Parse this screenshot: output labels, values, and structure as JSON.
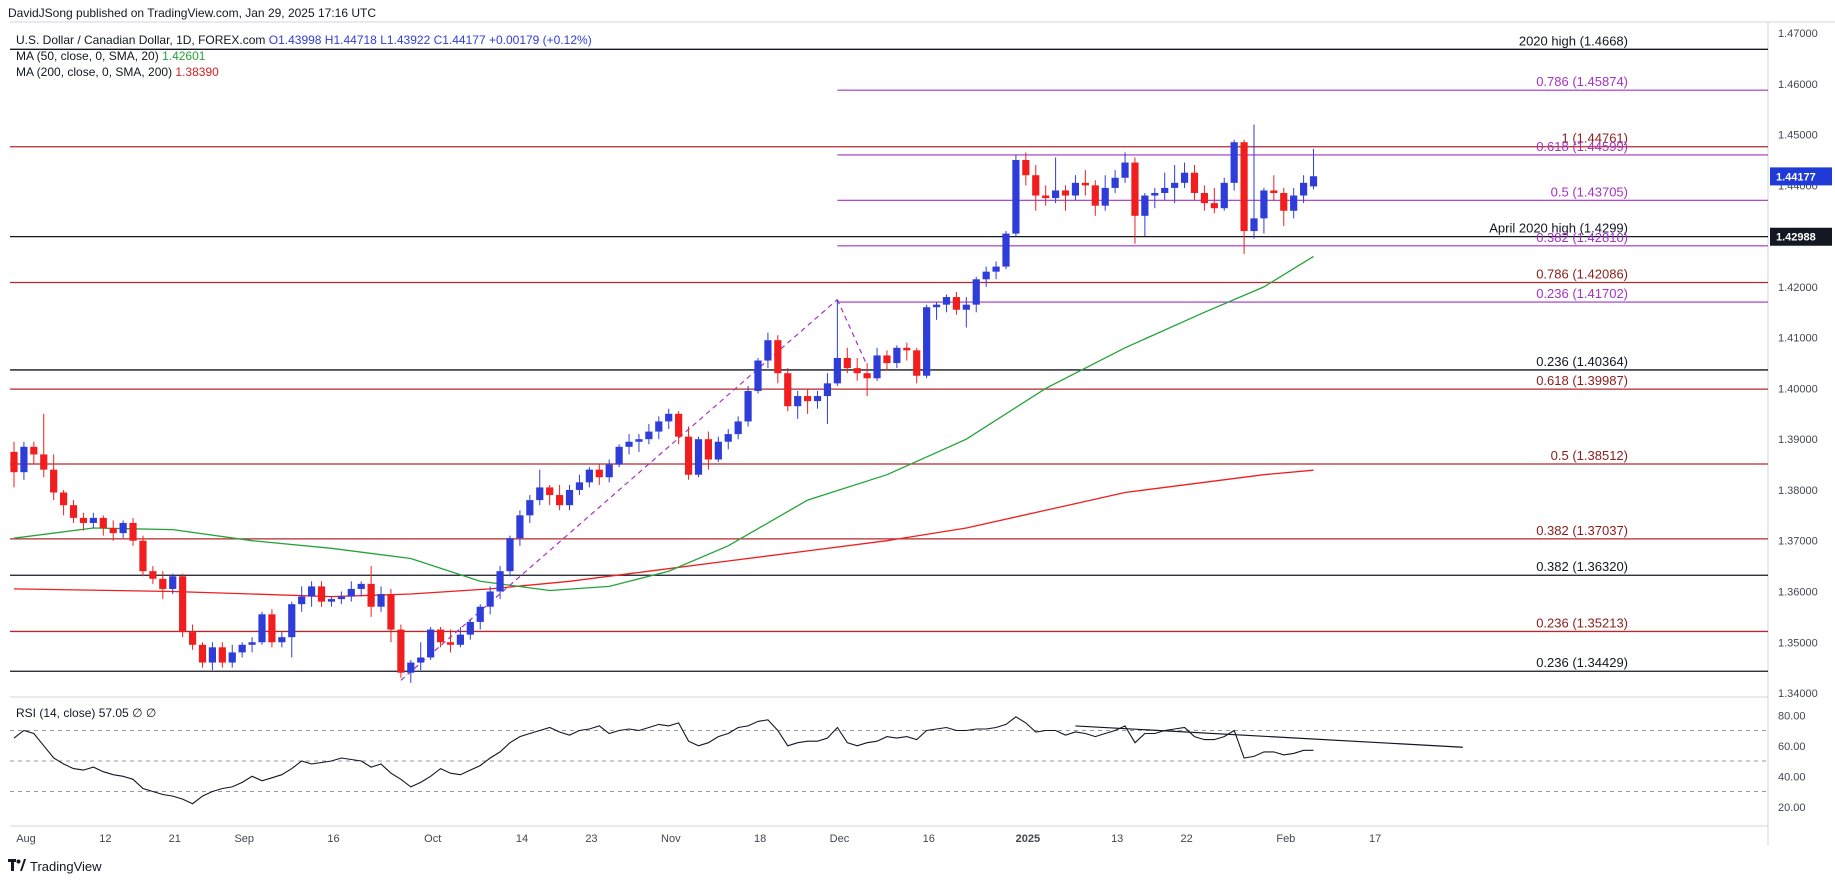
{
  "header": {
    "publisher": "DavidJSong published on TradingView.com, Jan 29, 2025 17:16 UTC"
  },
  "legend": {
    "symbol": "U.S. Dollar / Canadian Dollar, 1D, FOREX.com",
    "ohlc": "O1.43998 H1.44718 L1.43922 C1.44177 +0.00179 (+0.12%)",
    "ma50_label": "MA (50, close, 0, SMA, 20)",
    "ma50_value": "1.42601",
    "ma200_label": "MA (200, close, 0, SMA, 200)",
    "ma200_value": "1.38390",
    "rsi_label": "RSI (14, close)",
    "rsi_value": "57.05",
    "rsi_extra": "∅ ∅"
  },
  "footer": {
    "brand": "TradingView",
    "logo_icon": "tradingview-logo-icon"
  },
  "colors": {
    "up": "#2f3dd8",
    "down": "#f01e1e",
    "ma50": "#24a33a",
    "ma200": "#f01e1e",
    "fib": "#a233c4",
    "level": "#131722",
    "label_price_bg": "#1f3ad6",
    "label_level_bg": "#131722"
  },
  "chart_data": {
    "type": "candlestick",
    "price_axis": {
      "min": 1.34,
      "max": 1.47,
      "ticks": [
        "1.47000",
        "1.46000",
        "1.45000",
        "1.44000",
        "1.43000",
        "1.42000",
        "1.41000",
        "1.40000",
        "1.39000",
        "1.38000",
        "1.37000",
        "1.36000",
        "1.35000",
        "1.34000"
      ]
    },
    "time_axis": [
      "Aug",
      "12",
      "21",
      "Sep",
      "16",
      "Oct",
      "14",
      "23",
      "Nov",
      "18",
      "Dec",
      "16",
      "2025",
      "13",
      "22",
      "Feb",
      "17"
    ],
    "current_price_label": "1.44177",
    "level_price_label": "1.42988",
    "candles": [
      [
        1.3875,
        1.3895,
        1.3805,
        1.3835
      ],
      [
        1.3835,
        1.3895,
        1.382,
        1.3885
      ],
      [
        1.3885,
        1.3895,
        1.385,
        1.387
      ],
      [
        1.387,
        1.395,
        1.3825,
        1.384
      ],
      [
        1.384,
        1.387,
        1.378,
        1.3795
      ],
      [
        1.3795,
        1.38,
        1.375,
        1.377
      ],
      [
        1.377,
        1.378,
        1.3735,
        1.3745
      ],
      [
        1.3745,
        1.3755,
        1.372,
        1.3735
      ],
      [
        1.3735,
        1.3755,
        1.3725,
        1.3745
      ],
      [
        1.3745,
        1.375,
        1.371,
        1.3725
      ],
      [
        1.3725,
        1.374,
        1.37,
        1.3715
      ],
      [
        1.3715,
        1.374,
        1.3705,
        1.3735
      ],
      [
        1.3735,
        1.3745,
        1.369,
        1.37
      ],
      [
        1.37,
        1.371,
        1.363,
        1.364
      ],
      [
        1.364,
        1.365,
        1.3615,
        1.3625
      ],
      [
        1.3625,
        1.364,
        1.3585,
        1.3605
      ],
      [
        1.3605,
        1.3635,
        1.3595,
        1.363
      ],
      [
        1.363,
        1.3635,
        1.351,
        1.352
      ],
      [
        1.352,
        1.3535,
        1.3485,
        1.3495
      ],
      [
        1.3495,
        1.35,
        1.345,
        1.346
      ],
      [
        1.346,
        1.35,
        1.3445,
        1.349
      ],
      [
        1.349,
        1.35,
        1.345,
        1.346
      ],
      [
        1.346,
        1.3495,
        1.345,
        1.348
      ],
      [
        1.348,
        1.35,
        1.347,
        1.3495
      ],
      [
        1.3495,
        1.351,
        1.348,
        1.35
      ],
      [
        1.35,
        1.356,
        1.3495,
        1.3555
      ],
      [
        1.3555,
        1.3565,
        1.349,
        1.35
      ],
      [
        1.35,
        1.352,
        1.349,
        1.351
      ],
      [
        1.351,
        1.358,
        1.347,
        1.3575
      ],
      [
        1.3575,
        1.361,
        1.356,
        1.359
      ],
      [
        1.359,
        1.362,
        1.357,
        1.361
      ],
      [
        1.361,
        1.362,
        1.357,
        1.358
      ],
      [
        1.358,
        1.359,
        1.357,
        1.3585
      ],
      [
        1.3585,
        1.36,
        1.3575,
        1.359
      ],
      [
        1.359,
        1.362,
        1.358,
        1.3605
      ],
      [
        1.3605,
        1.362,
        1.359,
        1.3615
      ],
      [
        1.3615,
        1.365,
        1.355,
        1.357
      ],
      [
        1.357,
        1.361,
        1.356,
        1.3595
      ],
      [
        1.3595,
        1.3605,
        1.35,
        1.3525
      ],
      [
        1.3525,
        1.3535,
        1.343,
        1.344
      ],
      [
        1.344,
        1.3465,
        1.342,
        1.346
      ],
      [
        1.346,
        1.35,
        1.3445,
        1.347
      ],
      [
        1.347,
        1.353,
        1.3465,
        1.3525
      ],
      [
        1.3525,
        1.353,
        1.349,
        1.35
      ],
      [
        1.35,
        1.3525,
        1.348,
        1.3495
      ],
      [
        1.3495,
        1.353,
        1.349,
        1.3515
      ],
      [
        1.3515,
        1.3545,
        1.3505,
        1.354
      ],
      [
        1.354,
        1.3575,
        1.3525,
        1.357
      ],
      [
        1.357,
        1.361,
        1.3555,
        1.36
      ],
      [
        1.36,
        1.365,
        1.3585,
        1.364
      ],
      [
        1.364,
        1.371,
        1.363,
        1.3705
      ],
      [
        1.3705,
        1.376,
        1.369,
        1.375
      ],
      [
        1.375,
        1.379,
        1.3735,
        1.378
      ],
      [
        1.378,
        1.384,
        1.377,
        1.3805
      ],
      [
        1.3805,
        1.381,
        1.377,
        1.379
      ],
      [
        1.379,
        1.381,
        1.376,
        1.377
      ],
      [
        1.377,
        1.381,
        1.376,
        1.38
      ],
      [
        1.38,
        1.383,
        1.379,
        1.3815
      ],
      [
        1.3815,
        1.3845,
        1.3805,
        1.384
      ],
      [
        1.384,
        1.385,
        1.381,
        1.3825
      ],
      [
        1.3825,
        1.386,
        1.3815,
        1.385
      ],
      [
        1.385,
        1.389,
        1.3845,
        1.3885
      ],
      [
        1.3885,
        1.391,
        1.387,
        1.3895
      ],
      [
        1.3895,
        1.391,
        1.3875,
        1.39
      ],
      [
        1.39,
        1.393,
        1.389,
        1.3915
      ],
      [
        1.3915,
        1.3945,
        1.39,
        1.3935
      ],
      [
        1.3935,
        1.396,
        1.392,
        1.395
      ],
      [
        1.395,
        1.3955,
        1.389,
        1.3905
      ],
      [
        1.3905,
        1.3925,
        1.382,
        1.383
      ],
      [
        1.383,
        1.3905,
        1.3825,
        1.39
      ],
      [
        1.39,
        1.3915,
        1.384,
        1.386
      ],
      [
        1.386,
        1.3905,
        1.3855,
        1.3895
      ],
      [
        1.3895,
        1.392,
        1.388,
        1.391
      ],
      [
        1.391,
        1.3945,
        1.39,
        1.3935
      ],
      [
        1.3935,
        1.4005,
        1.3925,
        1.3995
      ],
      [
        1.3995,
        1.406,
        1.399,
        1.4055
      ],
      [
        1.4055,
        1.411,
        1.404,
        1.4095
      ],
      [
        1.4095,
        1.4105,
        1.401,
        1.403
      ],
      [
        1.403,
        1.404,
        1.3955,
        1.3965
      ],
      [
        1.3965,
        1.3995,
        1.394,
        1.3985
      ],
      [
        1.3985,
        1.4,
        1.395,
        1.3975
      ],
      [
        1.3975,
        1.3995,
        1.396,
        1.3985
      ],
      [
        1.3985,
        1.403,
        1.393,
        1.401
      ],
      [
        1.401,
        1.4175,
        1.4005,
        1.406
      ],
      [
        1.406,
        1.408,
        1.403,
        1.404
      ],
      [
        1.404,
        1.406,
        1.4015,
        1.403
      ],
      [
        1.403,
        1.405,
        1.3985,
        1.402
      ],
      [
        1.402,
        1.408,
        1.4015,
        1.4065
      ],
      [
        1.4065,
        1.4075,
        1.4035,
        1.405
      ],
      [
        1.405,
        1.4085,
        1.404,
        1.408
      ],
      [
        1.408,
        1.409,
        1.4055,
        1.4075
      ],
      [
        1.4075,
        1.408,
        1.401,
        1.4025
      ],
      [
        1.4025,
        1.4165,
        1.402,
        1.416
      ],
      [
        1.416,
        1.417,
        1.4135,
        1.4165
      ],
      [
        1.4165,
        1.4185,
        1.415,
        1.418
      ],
      [
        1.418,
        1.419,
        1.4145,
        1.4155
      ],
      [
        1.4155,
        1.418,
        1.412,
        1.4165
      ],
      [
        1.4165,
        1.422,
        1.415,
        1.4215
      ],
      [
        1.4215,
        1.424,
        1.42,
        1.423
      ],
      [
        1.423,
        1.425,
        1.4215,
        1.424
      ],
      [
        1.424,
        1.431,
        1.4235,
        1.4305
      ],
      [
        1.4305,
        1.446,
        1.43,
        1.445
      ],
      [
        1.445,
        1.4465,
        1.44,
        1.442
      ],
      [
        1.442,
        1.444,
        1.435,
        1.438
      ],
      [
        1.438,
        1.44,
        1.436,
        1.4375
      ],
      [
        1.4375,
        1.4455,
        1.4365,
        1.439
      ],
      [
        1.439,
        1.44,
        1.435,
        1.438
      ],
      [
        1.438,
        1.442,
        1.437,
        1.4405
      ],
      [
        1.4405,
        1.443,
        1.438,
        1.44
      ],
      [
        1.44,
        1.441,
        1.434,
        1.436
      ],
      [
        1.436,
        1.442,
        1.435,
        1.4395
      ],
      [
        1.4395,
        1.443,
        1.4385,
        1.4415
      ],
      [
        1.4415,
        1.4465,
        1.4405,
        1.4445
      ],
      [
        1.4445,
        1.4455,
        1.4285,
        1.434
      ],
      [
        1.434,
        1.4385,
        1.43,
        1.438
      ],
      [
        1.438,
        1.4395,
        1.4355,
        1.4385
      ],
      [
        1.4385,
        1.4425,
        1.437,
        1.4395
      ],
      [
        1.4395,
        1.444,
        1.4365,
        1.4405
      ],
      [
        1.4405,
        1.4445,
        1.4395,
        1.4425
      ],
      [
        1.4425,
        1.444,
        1.437,
        1.4385
      ],
      [
        1.4385,
        1.44,
        1.435,
        1.4365
      ],
      [
        1.4365,
        1.4395,
        1.4345,
        1.4355
      ],
      [
        1.4355,
        1.4415,
        1.435,
        1.4405
      ],
      [
        1.4405,
        1.449,
        1.439,
        1.4485
      ],
      [
        1.4485,
        1.449,
        1.4265,
        1.431
      ],
      [
        1.431,
        1.452,
        1.4295,
        1.4335
      ],
      [
        1.4335,
        1.4395,
        1.4305,
        1.439
      ],
      [
        1.439,
        1.442,
        1.437,
        1.4385
      ],
      [
        1.4385,
        1.4395,
        1.432,
        1.435
      ],
      [
        1.435,
        1.4395,
        1.4335,
        1.438
      ],
      [
        1.438,
        1.442,
        1.4365,
        1.4405
      ],
      [
        1.4398,
        1.4472,
        1.4392,
        1.4418
      ]
    ],
    "ma50": [
      [
        0,
        1.3705
      ],
      [
        8,
        1.3725
      ],
      [
        16,
        1.3722
      ],
      [
        24,
        1.37
      ],
      [
        32,
        1.3685
      ],
      [
        40,
        1.3665
      ],
      [
        47,
        1.362
      ],
      [
        54,
        1.3602
      ],
      [
        60,
        1.361
      ],
      [
        66,
        1.364
      ],
      [
        72,
        1.369
      ],
      [
        80,
        1.378
      ],
      [
        88,
        1.383
      ],
      [
        96,
        1.39
      ],
      [
        104,
        1.4
      ],
      [
        112,
        1.408
      ],
      [
        120,
        1.415
      ],
      [
        126,
        1.42
      ],
      [
        131,
        1.426
      ]
    ],
    "ma200": [
      [
        0,
        1.3605
      ],
      [
        16,
        1.36
      ],
      [
        24,
        1.3595
      ],
      [
        32,
        1.359
      ],
      [
        40,
        1.3595
      ],
      [
        48,
        1.3605
      ],
      [
        56,
        1.362
      ],
      [
        64,
        1.364
      ],
      [
        72,
        1.366
      ],
      [
        80,
        1.368
      ],
      [
        88,
        1.37
      ],
      [
        96,
        1.3725
      ],
      [
        104,
        1.376
      ],
      [
        112,
        1.3795
      ],
      [
        120,
        1.3815
      ],
      [
        126,
        1.383
      ],
      [
        131,
        1.3839
      ]
    ],
    "black_levels": [
      {
        "price": 1.4668,
        "label": "2020 high (1.4668)"
      },
      {
        "price": 1.4299,
        "label": "April 2020 high (1.4299)"
      },
      {
        "price": 1.40364,
        "label": "0.236 (1.40364)"
      },
      {
        "price": 1.3632,
        "label": "0.382 (1.36320)"
      },
      {
        "price": 1.34429,
        "label": "0.236 (1.34429)"
      }
    ],
    "red_levels": [
      {
        "price": 1.44761,
        "label": "1 (1.44761)"
      },
      {
        "price": 1.42086,
        "label": "0.786 (1.42086)"
      },
      {
        "price": 1.39987,
        "label": "0.618 (1.39987)"
      },
      {
        "price": 1.38512,
        "label": "0.5 (1.38512)"
      },
      {
        "price": 1.37037,
        "label": "0.382 (1.37037)"
      },
      {
        "price": 1.35213,
        "label": "0.236 (1.35213)"
      }
    ],
    "fib_levels": [
      {
        "price": 1.45874,
        "label": "0.786 (1.45874)"
      },
      {
        "price": 1.44599,
        "label": "0.618 (1.44599)"
      },
      {
        "price": 1.43705,
        "label": "0.5 (1.43705)"
      },
      {
        "price": 1.4281,
        "label": "0.382 (1.42810)"
      },
      {
        "price": 1.41702,
        "label": "0.236 (1.41702)"
      }
    ],
    "trend_lines": [
      {
        "from": [
          39,
          1.3425
        ],
        "to": [
          83,
          1.4175
        ]
      },
      {
        "from": [
          83,
          1.4175
        ],
        "to": [
          86,
          1.4045
        ]
      }
    ],
    "rsi": {
      "axis_ticks": [
        "80.00",
        "60.00",
        "40.00",
        "20.00"
      ],
      "overbought": 70,
      "mid": 50,
      "oversold": 30,
      "values": [
        65,
        70,
        68,
        60,
        52,
        48,
        45,
        44,
        46,
        43,
        41,
        40,
        38,
        32,
        30,
        28,
        27,
        25,
        22,
        27,
        30,
        32,
        33,
        36,
        40,
        37,
        39,
        41,
        45,
        50,
        48,
        49,
        50,
        52,
        51,
        50,
        46,
        48,
        42,
        38,
        33,
        36,
        40,
        45,
        42,
        41,
        44,
        47,
        52,
        56,
        62,
        66,
        68,
        70,
        72,
        69,
        67,
        70,
        71,
        73,
        68,
        70,
        71,
        70,
        72,
        74,
        73,
        75,
        63,
        60,
        62,
        66,
        68,
        72,
        73,
        76,
        77,
        70,
        60,
        62,
        63,
        63,
        65,
        72,
        62,
        60,
        62,
        63,
        66,
        65,
        66,
        64,
        70,
        71,
        72,
        70,
        70,
        71,
        71,
        72,
        74,
        79,
        75,
        69,
        70,
        70,
        67,
        69,
        68,
        66,
        68,
        70,
        73,
        62,
        68,
        68,
        70,
        71,
        72,
        66,
        64,
        64,
        66,
        70,
        52,
        53,
        56,
        56,
        54,
        55,
        57,
        57
      ],
      "divergence_line": {
        "from": [
          107,
          73
        ],
        "to": [
          140,
          59
        ]
      }
    }
  }
}
